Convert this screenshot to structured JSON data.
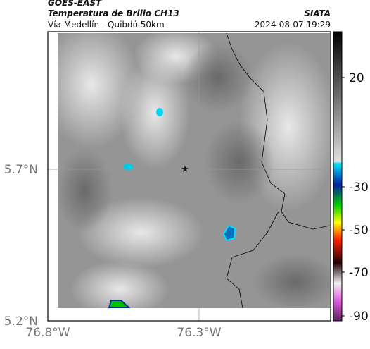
{
  "header": {
    "title": "GOES-EAST",
    "subtitle": "Temperatura de Brillo CH13",
    "location": "Vía Medellín - Quibdó 50km",
    "source": "SIATA",
    "timestamp": "2024-08-07 19:29"
  },
  "map": {
    "lat_labels": [
      "5.7°N",
      "5.2°N"
    ],
    "lon_labels": [
      "76.8°W",
      "76.3°W"
    ]
  },
  "colorbar": {
    "labels": [
      "20",
      "-30",
      "-50",
      "-70",
      "-90"
    ]
  }
}
